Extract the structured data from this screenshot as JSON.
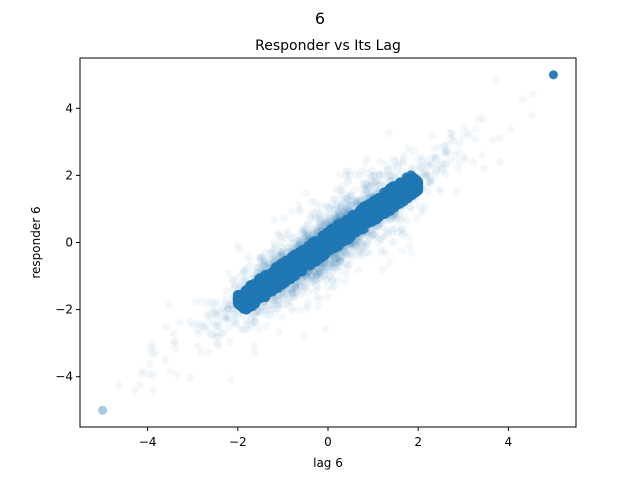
{
  "figure": {
    "suptitle": "6"
  },
  "chart_data": {
    "type": "scatter",
    "title": "Responder vs Its Lag",
    "xlabel": "lag 6",
    "ylabel": "responder 6",
    "xlim": [
      -5.5,
      5.5
    ],
    "ylim": [
      -5.5,
      5.5
    ],
    "xticks": [
      -4,
      -2,
      0,
      2,
      4
    ],
    "yticks": [
      -4,
      -2,
      0,
      2,
      4
    ],
    "xtick_labels": [
      "−4",
      "−2",
      "0",
      "2",
      "4"
    ],
    "ytick_labels": [
      "−4",
      "−2",
      "0",
      "2",
      "4"
    ],
    "grid": false,
    "legend": "none",
    "color": "#1f77b4",
    "point_alpha": 0.02,
    "distribution": {
      "correlation": 0.9,
      "clip_min": -5,
      "clip_max": 5,
      "dense_core": {
        "x_range": [
          -2,
          2
        ],
        "y_range": [
          -2,
          2
        ]
      }
    },
    "highlighted_points": [
      {
        "x": 5,
        "y": 5
      },
      {
        "x": -5,
        "y": -5
      }
    ]
  }
}
